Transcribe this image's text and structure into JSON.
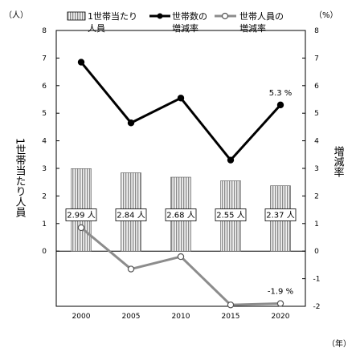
{
  "chart_data": {
    "type": "bar+line",
    "x": [
      "2000",
      "2005",
      "2010",
      "2015",
      "2020"
    ],
    "series": [
      {
        "name": "1世帯当たり人員",
        "kind": "bar",
        "axis": "left",
        "values": [
          2.99,
          2.84,
          2.68,
          2.55,
          2.37
        ],
        "labels": [
          "2.99 人",
          "2.84 人",
          "2.68 人",
          "2.55 人",
          "2.37 人"
        ],
        "color": "#9a9a9a"
      },
      {
        "name": "世帯数の増減率",
        "kind": "line",
        "axis": "right",
        "values": [
          6.85,
          4.65,
          5.55,
          3.3,
          5.3
        ],
        "marker": "filled-circle",
        "color": "#000000"
      },
      {
        "name": "世帯人員の増減率",
        "kind": "line",
        "axis": "right",
        "values": [
          0.85,
          -0.65,
          -0.2,
          -1.95,
          -1.9
        ],
        "marker": "open-circle",
        "color": "#8c8c8c"
      }
    ],
    "y_left": {
      "unit": "（人）",
      "label": "1世帯当たり人員",
      "range": [
        -2,
        8
      ],
      "ticks": [
        "0",
        "1",
        "2",
        "3",
        "4",
        "5",
        "6",
        "7",
        "8"
      ]
    },
    "y_right": {
      "unit": "（%）",
      "label": "増減率",
      "range": [
        -2,
        8
      ],
      "ticks": [
        "-2",
        "-1",
        "0",
        "1",
        "2",
        "3",
        "4",
        "5",
        "6",
        "7",
        "8"
      ]
    },
    "x_unit": "（年）",
    "annotations": [
      {
        "series": 1,
        "index": 4,
        "text": "5.3 %"
      },
      {
        "series": 2,
        "index": 4,
        "text": "-1.9 %"
      }
    ],
    "legend": {
      "position": "top",
      "items": [
        {
          "line1": "1世帯当たり",
          "line2": "人員"
        },
        {
          "line1": "世帯数の",
          "line2": "増減率"
        },
        {
          "line1": "世帯人員の",
          "line2": "増減率"
        }
      ]
    },
    "grid": false
  }
}
